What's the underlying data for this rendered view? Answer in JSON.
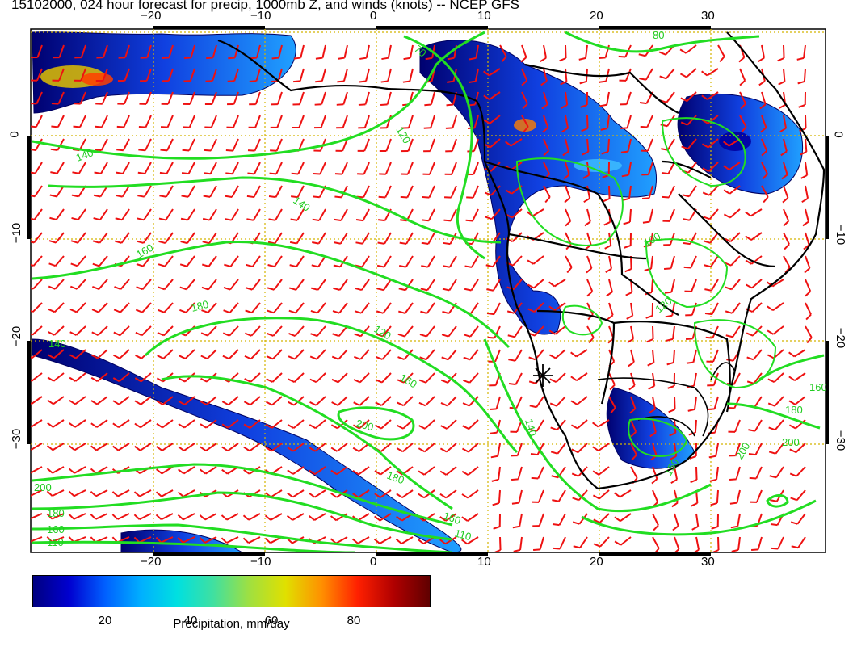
{
  "title": "15102000, 024 hour forecast for precip, 1000mb Z, and winds (knots) -- NCEP GFS",
  "map": {
    "lon_ticks": [
      "−20",
      "−10",
      "0",
      "10",
      "20",
      "30"
    ],
    "lat_ticks": [
      "0",
      "−10",
      "−20",
      "−30"
    ],
    "contour_labels": [
      "80",
      "70",
      "120",
      "140",
      "140",
      "160",
      "180",
      "120",
      "160",
      "200",
      "180",
      "160",
      "110",
      "140",
      "200",
      "180",
      "160",
      "110",
      "140",
      "150",
      "160",
      "180",
      "200",
      "200",
      "100",
      "120"
    ],
    "colors": {
      "contour": "#22dd22",
      "wind_barb": "#ee1111",
      "coastline": "#000000",
      "grid": "#d4b400"
    }
  },
  "colorbar": {
    "label": "Precipitation, mm/day",
    "ticks": [
      "20",
      "40",
      "60",
      "80"
    ],
    "colors": [
      "#000080",
      "#0000d0",
      "#0060ff",
      "#00b0ff",
      "#00e0e0",
      "#40e0a0",
      "#a0e040",
      "#e0e000",
      "#ff9000",
      "#ff2000",
      "#b00000",
      "#600000"
    ]
  }
}
